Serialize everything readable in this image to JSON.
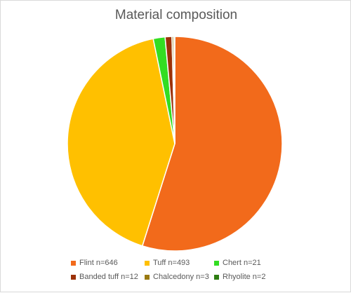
{
  "chart_data": {
    "type": "pie",
    "title": "Material composition",
    "categories": [
      "Flint n=646",
      "Tuff n=493",
      "Chert n=21",
      "Banded tuff n=12",
      "Chalcedony n=3",
      "Rhyolite n=2"
    ],
    "values": [
      646,
      493,
      21,
      12,
      3,
      2
    ],
    "colors": [
      "#f26a1b",
      "#ffc000",
      "#33dd22",
      "#9c3108",
      "#9a7a10",
      "#2e7d12"
    ],
    "legend_position": "bottom"
  }
}
